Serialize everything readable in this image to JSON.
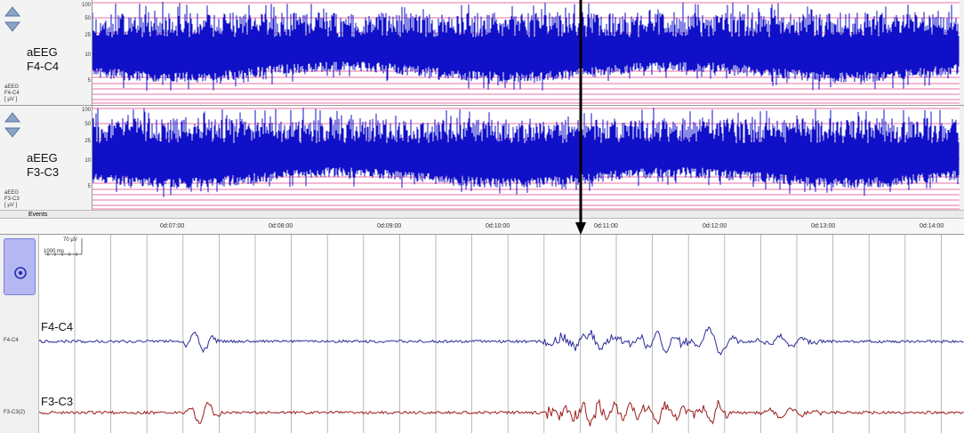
{
  "aeeg_channels": [
    {
      "title": "aEEG",
      "lead": "F4-C4",
      "small_lines": [
        "aEEG",
        "F4-C4",
        "[ µV ]"
      ]
    },
    {
      "title": "aEEG",
      "lead": "F3-C3",
      "small_lines": [
        "aEEG",
        "F3-C3",
        "[ µV ]"
      ]
    }
  ],
  "y_ticks": [
    "100",
    "50",
    "25",
    "10",
    "5"
  ],
  "events_label": "Events",
  "time_ticks": [
    "0d:07:00",
    "0d:08:00",
    "0d:09:00",
    "0d:10:00",
    "0d:11:00",
    "0d:12:00",
    "0d:13:00",
    "0d:14:00"
  ],
  "raw": {
    "scale_amplitude": "70 µV",
    "scale_time": "1000 ms",
    "channels": [
      {
        "name": "F4-C4",
        "side_label": "F4-C4",
        "color": "#2b2b9a"
      },
      {
        "name": "F3-C3",
        "side_label": "F3-C3(2)",
        "color": "#9b1c1c"
      }
    ]
  },
  "colors": {
    "aeeg_trace": "#1010c8",
    "reference_line": "#e0408a",
    "marker": "#000000"
  },
  "icons": {
    "scroll_up": "triangle-up-icon",
    "scroll_down": "triangle-down-icon",
    "monitor": "target-icon"
  }
}
